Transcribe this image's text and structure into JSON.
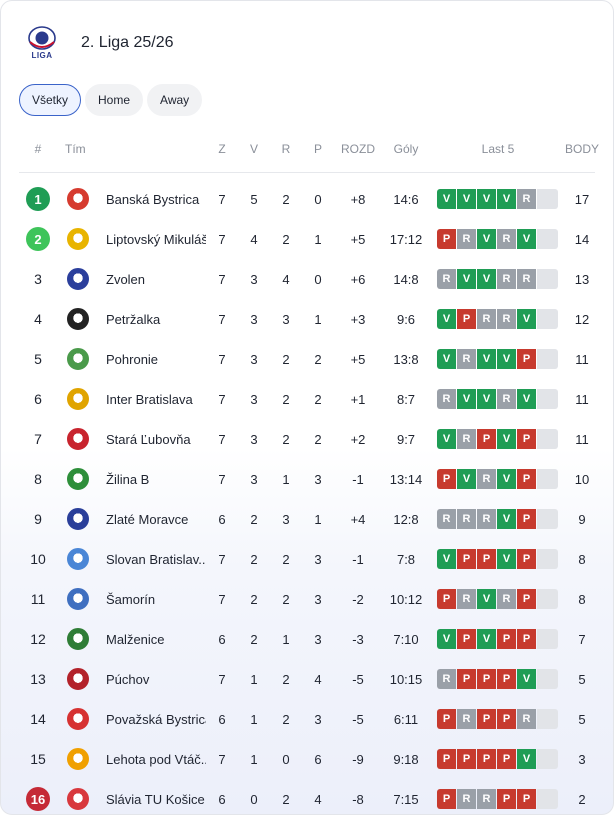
{
  "header": {
    "logo_text": "LIGA",
    "title": "2. Liga 25/26"
  },
  "filters": [
    "Všetky",
    "Home",
    "Away"
  ],
  "columns": {
    "pos": "#",
    "team": "Tím",
    "played": "Z",
    "won": "V",
    "drawn": "R",
    "lost": "P",
    "diff": "ROZD",
    "goals": "Góly",
    "form": "Last 5",
    "points": "BODY"
  },
  "colors": {
    "win": "#1f9d55",
    "draw": "#9aa0a8",
    "loss": "#c73a2e",
    "promo": "#1f9d55",
    "playoff": "#3ec45a",
    "releg": "#c52a36"
  },
  "rows": [
    {
      "pos": "1",
      "team": "Banská Bystrica",
      "z": "7",
      "v": "5",
      "r": "2",
      "p": "0",
      "rozd": "+8",
      "goly": "14:6",
      "form": [
        "V",
        "V",
        "V",
        "V",
        "R"
      ],
      "body": "17",
      "badge": "promo",
      "crest": "#d63b2f"
    },
    {
      "pos": "2",
      "team": "Liptovský Mikuláš",
      "z": "7",
      "v": "4",
      "r": "2",
      "p": "1",
      "rozd": "+5",
      "goly": "17:12",
      "form": [
        "P",
        "R",
        "V",
        "R",
        "V"
      ],
      "body": "14",
      "badge": "playoff",
      "crest": "#e8b400"
    },
    {
      "pos": "3",
      "team": "Zvolen",
      "z": "7",
      "v": "3",
      "r": "4",
      "p": "0",
      "rozd": "+6",
      "goly": "14:8",
      "form": [
        "R",
        "V",
        "V",
        "R",
        "R"
      ],
      "body": "13",
      "badge": "",
      "crest": "#2b3f9c"
    },
    {
      "pos": "4",
      "team": "Petržalka",
      "z": "7",
      "v": "3",
      "r": "3",
      "p": "1",
      "rozd": "+3",
      "goly": "9:6",
      "form": [
        "V",
        "P",
        "R",
        "R",
        "V"
      ],
      "body": "12",
      "badge": "",
      "crest": "#222222"
    },
    {
      "pos": "5",
      "team": "Pohronie",
      "z": "7",
      "v": "3",
      "r": "2",
      "p": "2",
      "rozd": "+5",
      "goly": "13:8",
      "form": [
        "V",
        "R",
        "V",
        "V",
        "P"
      ],
      "body": "11",
      "badge": "",
      "crest": "#4a9a4a"
    },
    {
      "pos": "6",
      "team": "Inter Bratislava",
      "z": "7",
      "v": "3",
      "r": "2",
      "p": "2",
      "rozd": "+1",
      "goly": "8:7",
      "form": [
        "R",
        "V",
        "V",
        "R",
        "V"
      ],
      "body": "11",
      "badge": "",
      "crest": "#e0a400"
    },
    {
      "pos": "7",
      "team": "Stará Ľubovňa",
      "z": "7",
      "v": "3",
      "r": "2",
      "p": "2",
      "rozd": "+2",
      "goly": "9:7",
      "form": [
        "V",
        "R",
        "P",
        "V",
        "P"
      ],
      "body": "11",
      "badge": "",
      "crest": "#c8242e"
    },
    {
      "pos": "8",
      "team": "Žilina B",
      "z": "7",
      "v": "3",
      "r": "1",
      "p": "3",
      "rozd": "-1",
      "goly": "13:14",
      "form": [
        "P",
        "V",
        "R",
        "V",
        "P"
      ],
      "body": "10",
      "badge": "",
      "crest": "#2e8f3a"
    },
    {
      "pos": "9",
      "team": "Zlaté Moravce",
      "z": "6",
      "v": "2",
      "r": "3",
      "p": "1",
      "rozd": "+4",
      "goly": "12:8",
      "form": [
        "R",
        "R",
        "R",
        "V",
        "P"
      ],
      "body": "9",
      "badge": "",
      "crest": "#2a3f9a"
    },
    {
      "pos": "10",
      "team": "Slovan Bratislav...",
      "z": "7",
      "v": "2",
      "r": "2",
      "p": "3",
      "rozd": "-1",
      "goly": "7:8",
      "form": [
        "V",
        "P",
        "P",
        "V",
        "P"
      ],
      "body": "8",
      "badge": "",
      "crest": "#4a86d6"
    },
    {
      "pos": "11",
      "team": "Šamorín",
      "z": "7",
      "v": "2",
      "r": "2",
      "p": "3",
      "rozd": "-2",
      "goly": "10:12",
      "form": [
        "P",
        "R",
        "V",
        "R",
        "P"
      ],
      "body": "8",
      "badge": "",
      "crest": "#3f6fc0"
    },
    {
      "pos": "12",
      "team": "Malženice",
      "z": "6",
      "v": "2",
      "r": "1",
      "p": "3",
      "rozd": "-3",
      "goly": "7:10",
      "form": [
        "V",
        "P",
        "V",
        "P",
        "P"
      ],
      "body": "7",
      "badge": "",
      "crest": "#2f7d36"
    },
    {
      "pos": "13",
      "team": "Púchov",
      "z": "7",
      "v": "1",
      "r": "2",
      "p": "4",
      "rozd": "-5",
      "goly": "10:15",
      "form": [
        "R",
        "P",
        "P",
        "P",
        "V"
      ],
      "body": "5",
      "badge": "",
      "crest": "#b3222a"
    },
    {
      "pos": "14",
      "team": "Považská Bystrica",
      "z": "6",
      "v": "1",
      "r": "2",
      "p": "3",
      "rozd": "-5",
      "goly": "6:11",
      "form": [
        "P",
        "R",
        "P",
        "P",
        "R"
      ],
      "body": "5",
      "badge": "",
      "crest": "#d63232"
    },
    {
      "pos": "15",
      "team": "Lehota pod Vtáč...",
      "z": "7",
      "v": "1",
      "r": "0",
      "p": "6",
      "rozd": "-9",
      "goly": "9:18",
      "form": [
        "P",
        "P",
        "P",
        "P",
        "V"
      ],
      "body": "3",
      "badge": "",
      "crest": "#f0a000"
    },
    {
      "pos": "16",
      "team": "Slávia TU Košice",
      "z": "6",
      "v": "0",
      "r": "2",
      "p": "4",
      "rozd": "-8",
      "goly": "7:15",
      "form": [
        "P",
        "R",
        "R",
        "P",
        "P"
      ],
      "body": "2",
      "badge": "releg",
      "crest": "#d8383d"
    }
  ]
}
